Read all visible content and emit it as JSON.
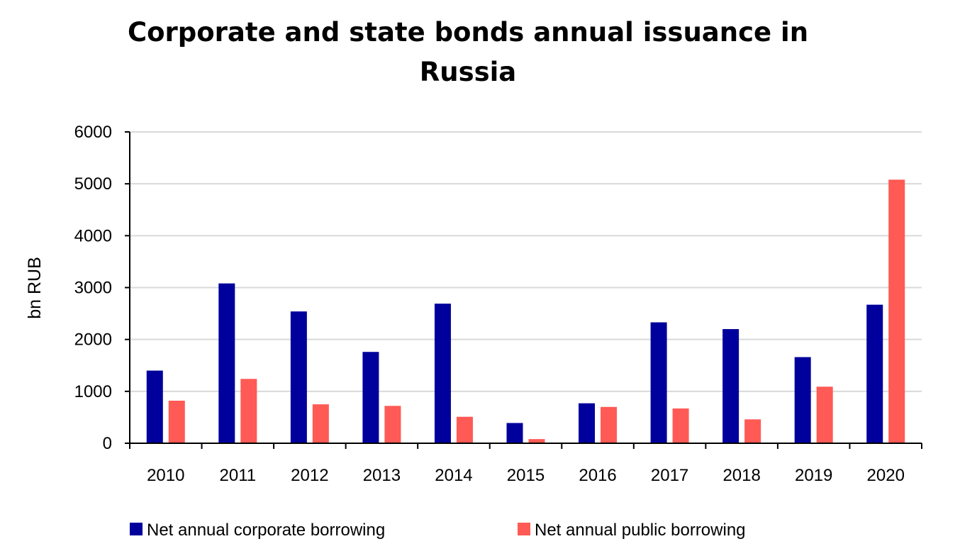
{
  "chart_data": {
    "type": "bar",
    "title": "Corporate and state bonds annual issuance in\nRussia",
    "xlabel": "",
    "ylabel": "bn RUB",
    "ylim": [
      0,
      6000
    ],
    "yticks": [
      "0",
      "1000",
      "2000",
      "3000",
      "4000",
      "5000",
      "6000"
    ],
    "categories": [
      "2010",
      "2011",
      "2012",
      "2013",
      "2014",
      "2015",
      "2016",
      "2017",
      "2018",
      "2019",
      "2020"
    ],
    "series": [
      {
        "name": "Net annual corporate borrowing",
        "color": "#00009C",
        "values": [
          1400,
          3080,
          2540,
          1760,
          2690,
          390,
          770,
          2330,
          2200,
          1660,
          2670
        ]
      },
      {
        "name": "Net annual public borrowing",
        "color": "#FF5A55",
        "values": [
          820,
          1240,
          750,
          720,
          510,
          80,
          700,
          670,
          460,
          1090,
          5080
        ]
      }
    ],
    "grid": true,
    "legend_position": "bottom"
  }
}
